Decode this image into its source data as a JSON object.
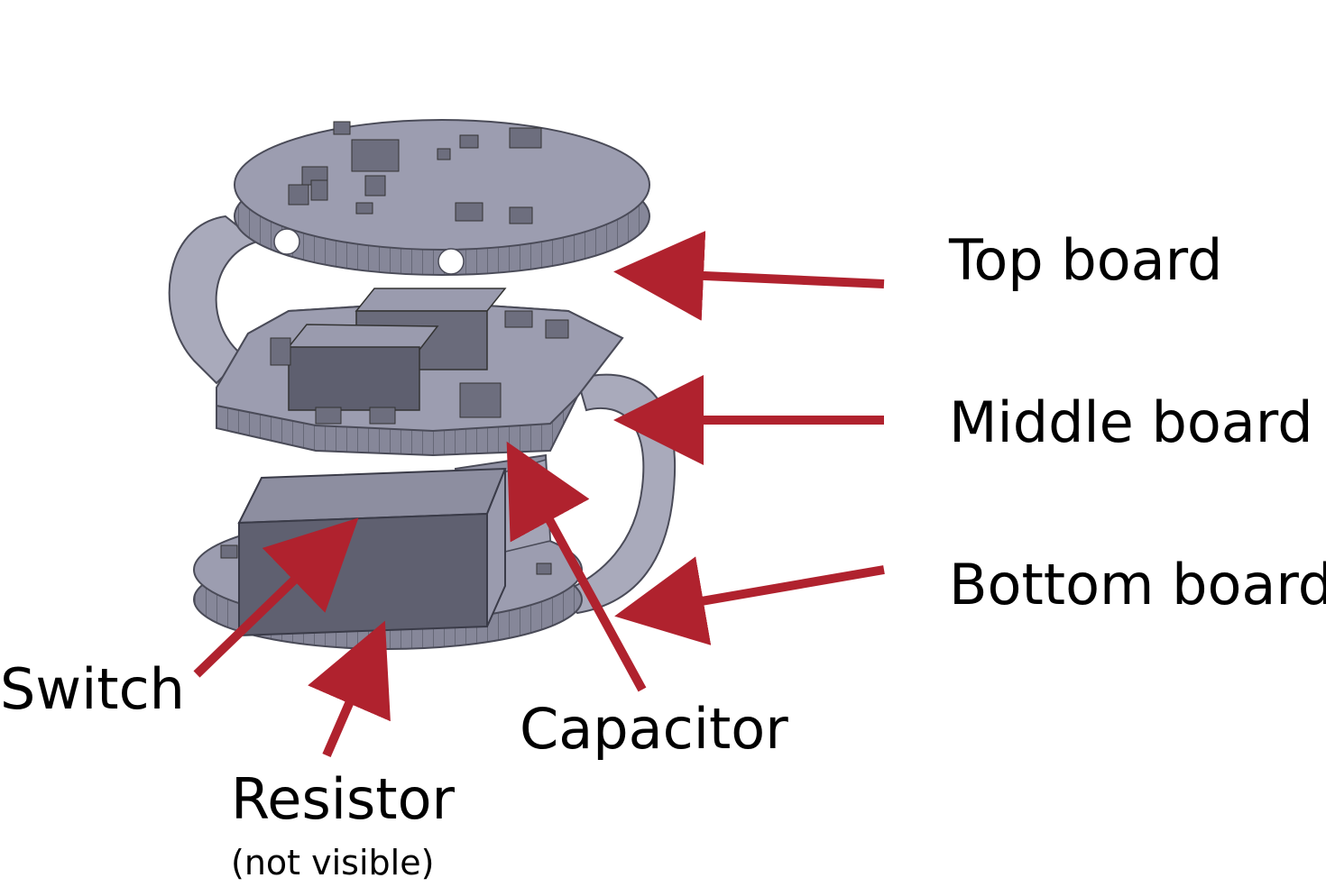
{
  "labels": {
    "top_board": "Top board",
    "middle_board": "Middle board",
    "bottom_board": "Bottom board",
    "switch": "Switch",
    "capacitor": "Capacitor",
    "resistor": "Resistor",
    "resistor_note": "(not visible)"
  },
  "colors": {
    "arrow": "#b0222e",
    "board_top": "#9c9db0",
    "board_edge": "#7d7e90",
    "component": "#6d6e7e",
    "flex": "#a9aabb"
  }
}
